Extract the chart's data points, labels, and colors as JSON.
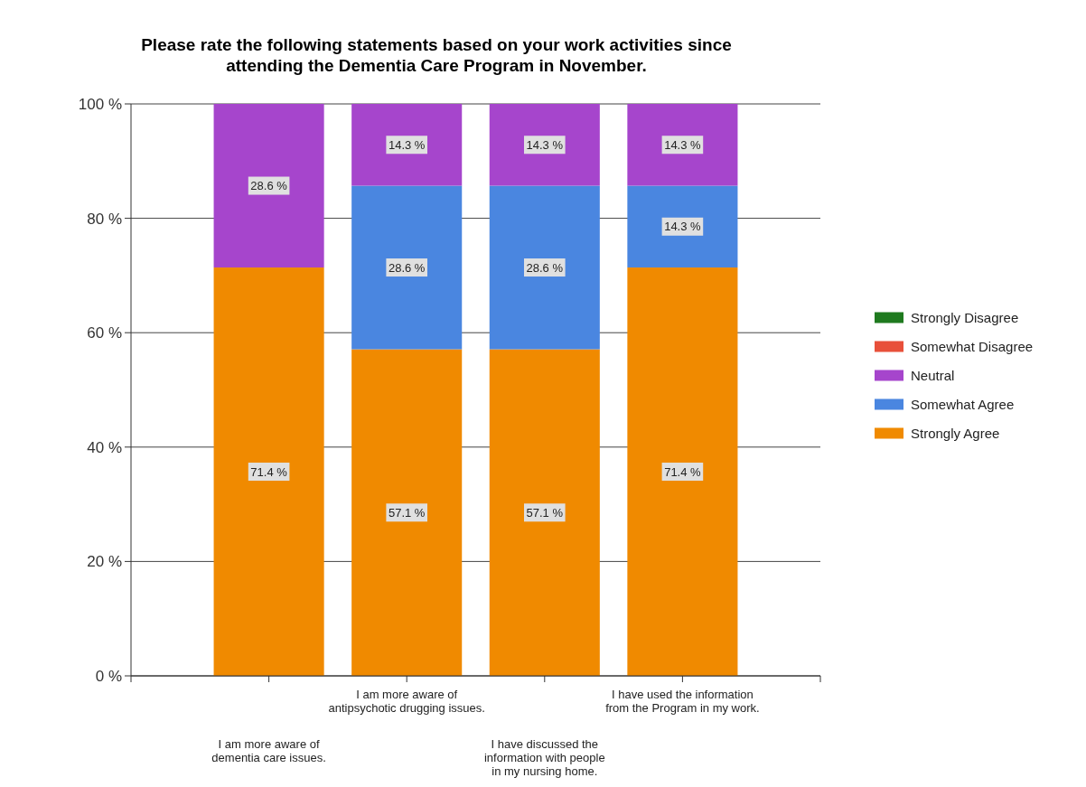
{
  "chart_data": {
    "type": "bar",
    "stacked": true,
    "title": "Please rate the following statements based on your work activities since attending the Dementia Care Program in November.",
    "categories": [
      "I am more aware of dementia care issues.",
      "I am more aware of antipsychotic drugging issues.",
      "I have discussed the information with people in my nursing home.",
      "I have used the information from the Program in my work."
    ],
    "series": [
      {
        "name": "Strongly Agree",
        "color": "#f08a00",
        "values": [
          71.4,
          57.1,
          57.1,
          71.4
        ],
        "value_labels": [
          "71.4 %",
          "57.1 %",
          "57.1 %",
          "71.4 %"
        ]
      },
      {
        "name": "Somewhat Agree",
        "color": "#4a86e0",
        "values": [
          0,
          28.6,
          28.6,
          14.3
        ],
        "value_labels": [
          null,
          "28.6 %",
          "28.6 %",
          "14.3 %"
        ]
      },
      {
        "name": "Neutral",
        "color": "#a645cc",
        "values": [
          28.6,
          14.3,
          14.3,
          14.3
        ],
        "value_labels": [
          "28.6 %",
          "14.3 %",
          "14.3 %",
          "14.3 %"
        ]
      },
      {
        "name": "Somewhat Disagree",
        "color": "#e8503a",
        "values": [
          0,
          0,
          0,
          0
        ]
      },
      {
        "name": "Strongly Disagree",
        "color": "#1f7a1f",
        "values": [
          0,
          0,
          0,
          0
        ]
      }
    ],
    "ylim": [
      0,
      100
    ],
    "yticks": [
      {
        "value": 0,
        "label": "0 %"
      },
      {
        "value": 20,
        "label": "20 %"
      },
      {
        "value": 40,
        "label": "40 %"
      },
      {
        "value": 60,
        "label": "60 %"
      },
      {
        "value": 80,
        "label": "80 %"
      },
      {
        "value": 100,
        "label": "100 %"
      }
    ],
    "grid": "y",
    "legend": "right"
  }
}
